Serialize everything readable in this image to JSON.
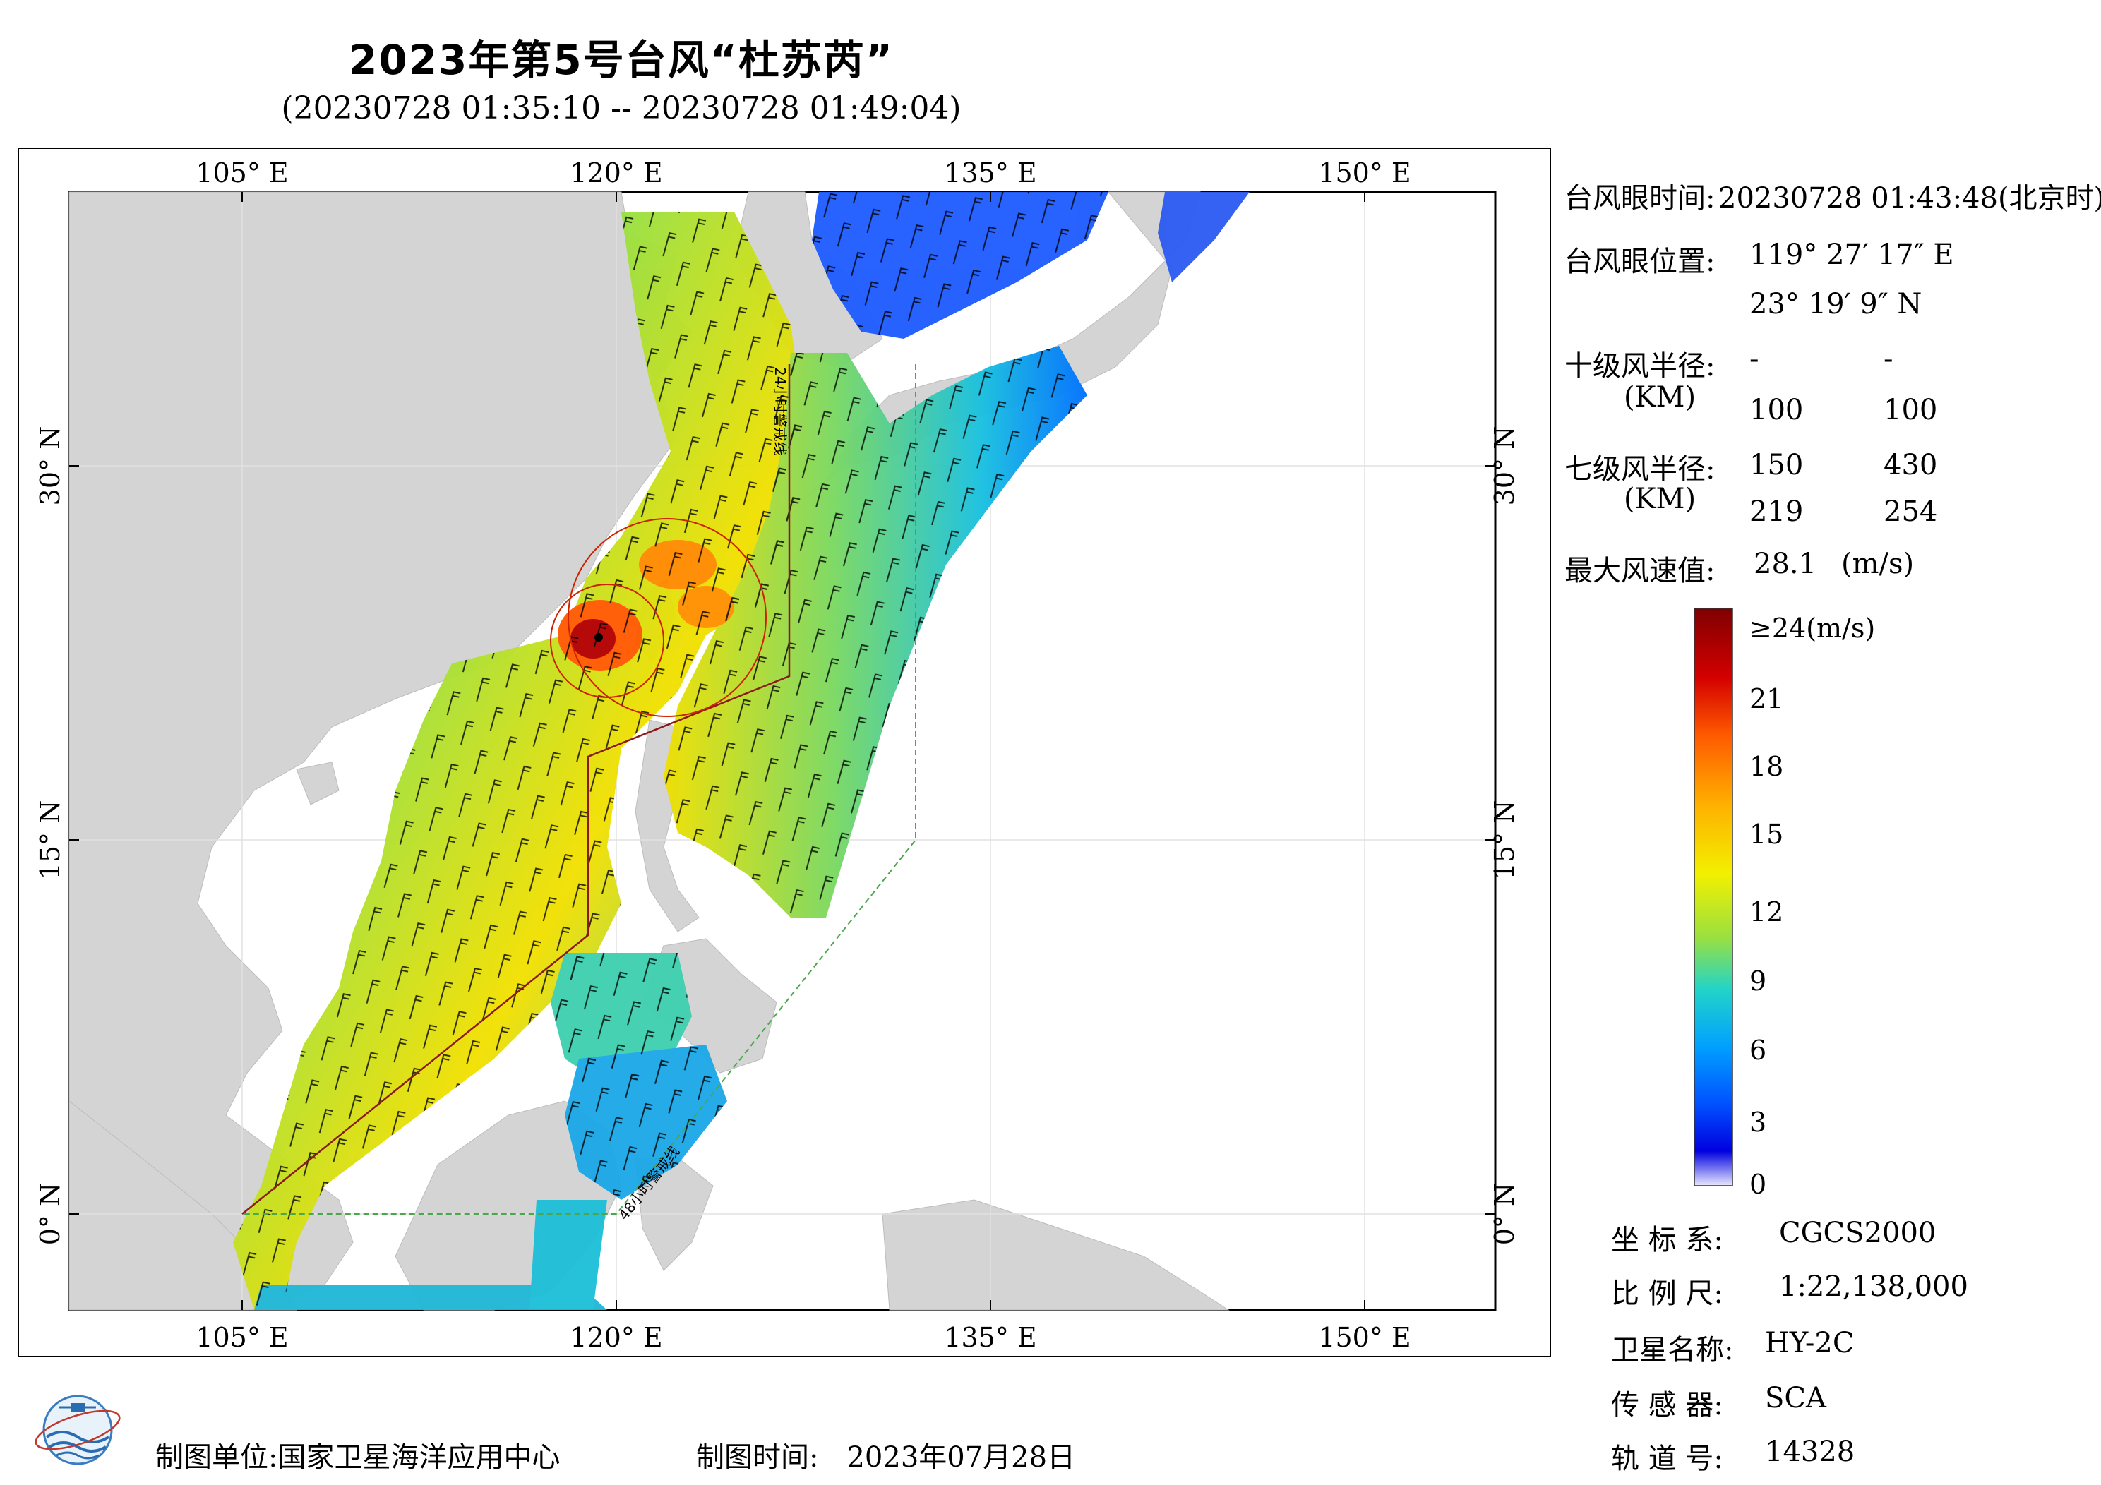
{
  "title": "2023年第5号台风“杜苏芮”",
  "subtitle": "(20230728 01:35:10 -- 20230728 01:49:04)",
  "map": {
    "lon_ticks": [
      "105° E",
      "120° E",
      "135° E",
      "150° E"
    ],
    "lat_ticks": [
      "30° N",
      "15° N",
      "0° N"
    ],
    "warning_line_24": "24小时警戒线",
    "warning_line_48": "48小时警戒线",
    "colors": {
      "land": "#d4d4d4",
      "sea": "#ffffff",
      "warning_24": "#8b1a1a",
      "warning_48": "#4ca64c",
      "typhoon_circle": "#cc2200"
    }
  },
  "info": {
    "eye_time_label": "台风眼时间:",
    "eye_time": "20230728 01:43:48(北京时)",
    "eye_pos_label": "台风眼位置:",
    "eye_lon": "119° 27′ 17″ E",
    "eye_lat": "23° 19′ 9″ N",
    "r10_label": "十级风半径:",
    "r10_unit": "(KM)",
    "r10_row1": [
      "-",
      "-"
    ],
    "r10_row2": [
      "100",
      "100"
    ],
    "r7_label": "七级风半径:",
    "r7_unit": "(KM)",
    "r7_row1": [
      "150",
      "430"
    ],
    "r7_row2": [
      "219",
      "254"
    ],
    "max_wind_label": "最大风速值:",
    "max_wind_value": "28.1",
    "max_wind_unit": "(m/s)"
  },
  "legend": {
    "labels": [
      "≥24(m/s)",
      "21",
      "18",
      "15",
      "12",
      "9",
      "6",
      "3",
      "0"
    ],
    "colors": [
      "#800000",
      "#d40000",
      "#ff5a00",
      "#ffb000",
      "#f2f000",
      "#9ae040",
      "#22d4c8",
      "#00a0ff",
      "#0050ff",
      "#0000e0",
      "#c8c8ff"
    ]
  },
  "meta": {
    "crs_label": "坐 标 系:",
    "crs": "CGCS2000",
    "scale_label": "比 例 尺:",
    "scale": "1:22,138,000",
    "sat_label": "卫星名称:",
    "sat": "HY-2C",
    "sensor_label": "传 感 器:",
    "sensor": "SCA",
    "orbit_label": "轨 道 号:",
    "orbit": "14328"
  },
  "footer": {
    "org_label": "制图单位:",
    "org": "国家卫星海洋应用中心",
    "date_label": "制图时间:",
    "date": "2023年07月28日"
  }
}
